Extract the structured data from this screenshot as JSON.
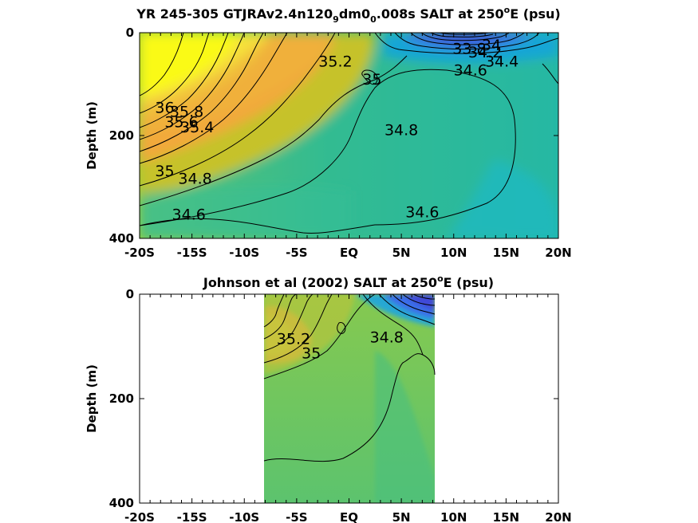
{
  "chart_data": [
    {
      "type": "heatmap",
      "subtype": "filled-contour",
      "title_parts": {
        "main": "YR 245-305 GTJRAv2.4n120",
        "sub1": "9",
        "mid": "dm0",
        "sub2": "0",
        "post": ".008s SALT at 250",
        "sup": "o",
        "tail": "E (psu)"
      },
      "ylabel": "Depth (m)",
      "xlabel": "",
      "x_ticks": [
        "-20S",
        "-15S",
        "-10S",
        "-5S",
        "EQ",
        "5N",
        "10N",
        "15N",
        "20N"
      ],
      "x_tick_values": [
        -20,
        -15,
        -10,
        -5,
        0,
        5,
        10,
        15,
        20
      ],
      "y_ticks": [
        "0",
        "200",
        "400"
      ],
      "y_tick_values": [
        0,
        200,
        400
      ],
      "xlim": [
        -20,
        20
      ],
      "ylim": [
        400,
        0
      ],
      "y_reversed": true,
      "colormap": "parula",
      "contour_labels": [
        {
          "text": "36",
          "lat": -17.6,
          "depth": 145
        },
        {
          "text": "35.8",
          "lat": -15.5,
          "depth": 153
        },
        {
          "text": "35.6",
          "lat": -16,
          "depth": 173
        },
        {
          "text": "35.4",
          "lat": -14.5,
          "depth": 183
        },
        {
          "text": "35.2",
          "lat": -1.3,
          "depth": 55
        },
        {
          "text": "35",
          "lat": 2.2,
          "depth": 90
        },
        {
          "text": "35",
          "lat": -17.6,
          "depth": 268
        },
        {
          "text": "34.8",
          "lat": -14.7,
          "depth": 283
        },
        {
          "text": "34.8",
          "lat": 5,
          "depth": 188
        },
        {
          "text": "34.6",
          "lat": -15.3,
          "depth": 353
        },
        {
          "text": "34.6",
          "lat": 7,
          "depth": 348
        },
        {
          "text": "34.6",
          "lat": 11.6,
          "depth": 72
        },
        {
          "text": "33.8",
          "lat": 11.5,
          "depth": 30
        },
        {
          "text": "34.2",
          "lat": 13,
          "depth": 37
        },
        {
          "text": "34",
          "lat": 13.6,
          "depth": 23
        },
        {
          "text": "34.4",
          "lat": 14.6,
          "depth": 55
        }
      ]
    },
    {
      "type": "heatmap",
      "subtype": "filled-contour",
      "title_parts": {
        "main": "Johnson et al (2002) SALT at 250",
        "sup": "o",
        "tail": "E (psu)"
      },
      "ylabel": "Depth (m)",
      "xlabel": "",
      "x_ticks": [
        "-20S",
        "-15S",
        "-10S",
        "-5S",
        "EQ",
        "5N",
        "10N",
        "15N",
        "20N"
      ],
      "x_tick_values": [
        -20,
        -15,
        -10,
        -5,
        0,
        5,
        10,
        15,
        20
      ],
      "y_ticks": [
        "0",
        "200",
        "400"
      ],
      "y_tick_values": [
        0,
        200,
        400
      ],
      "xlim": [
        -20,
        20
      ],
      "ylim": [
        400,
        0
      ],
      "y_reversed": true,
      "data_lat_range": [
        -8,
        8.3
      ],
      "colormap": "parula",
      "contour_labels": [
        {
          "text": "35.2",
          "lat": -5.3,
          "depth": 85
        },
        {
          "text": "35",
          "lat": -3.6,
          "depth": 112
        },
        {
          "text": "34.8",
          "lat": 3.6,
          "depth": 82
        }
      ]
    }
  ]
}
